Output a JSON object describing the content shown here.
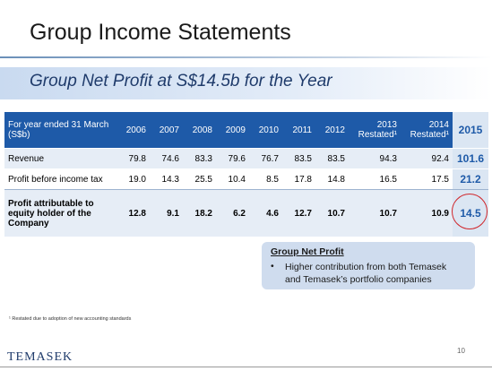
{
  "title": "Group Income Statements",
  "subtitle": "Group Net Profit at S$14.5b for the Year",
  "table": {
    "header": [
      "For year ended 31 March (S$b)",
      "2006",
      "2007",
      "2008",
      "2009",
      "2010",
      "2011",
      "2012",
      "2013 Restated¹",
      "2014 Restated¹",
      "2015"
    ],
    "rows": [
      [
        "Revenue",
        "79.8",
        "74.6",
        "83.3",
        "79.6",
        "76.7",
        "83.5",
        "83.5",
        "94.3",
        "92.4",
        "101.6"
      ],
      [
        "Profit before income tax",
        "19.0",
        "14.3",
        "25.5",
        "10.4",
        "8.5",
        "17.8",
        "14.8",
        "16.5",
        "17.5",
        "21.2"
      ],
      [
        "Profit attributable to equity holder of the Company",
        "12.8",
        "9.1",
        "18.2",
        "6.2",
        "4.6",
        "12.7",
        "10.7",
        "10.7",
        "10.9",
        "14.5"
      ]
    ]
  },
  "callout": {
    "heading": "Group Net Profit",
    "bullet": "Higher contribution from both Temasek and Temasek’s portfolio companies"
  },
  "footnote": "¹ Restated due to adoption of new accounting standards",
  "logo": "TEMASEK",
  "page_number": "10"
}
